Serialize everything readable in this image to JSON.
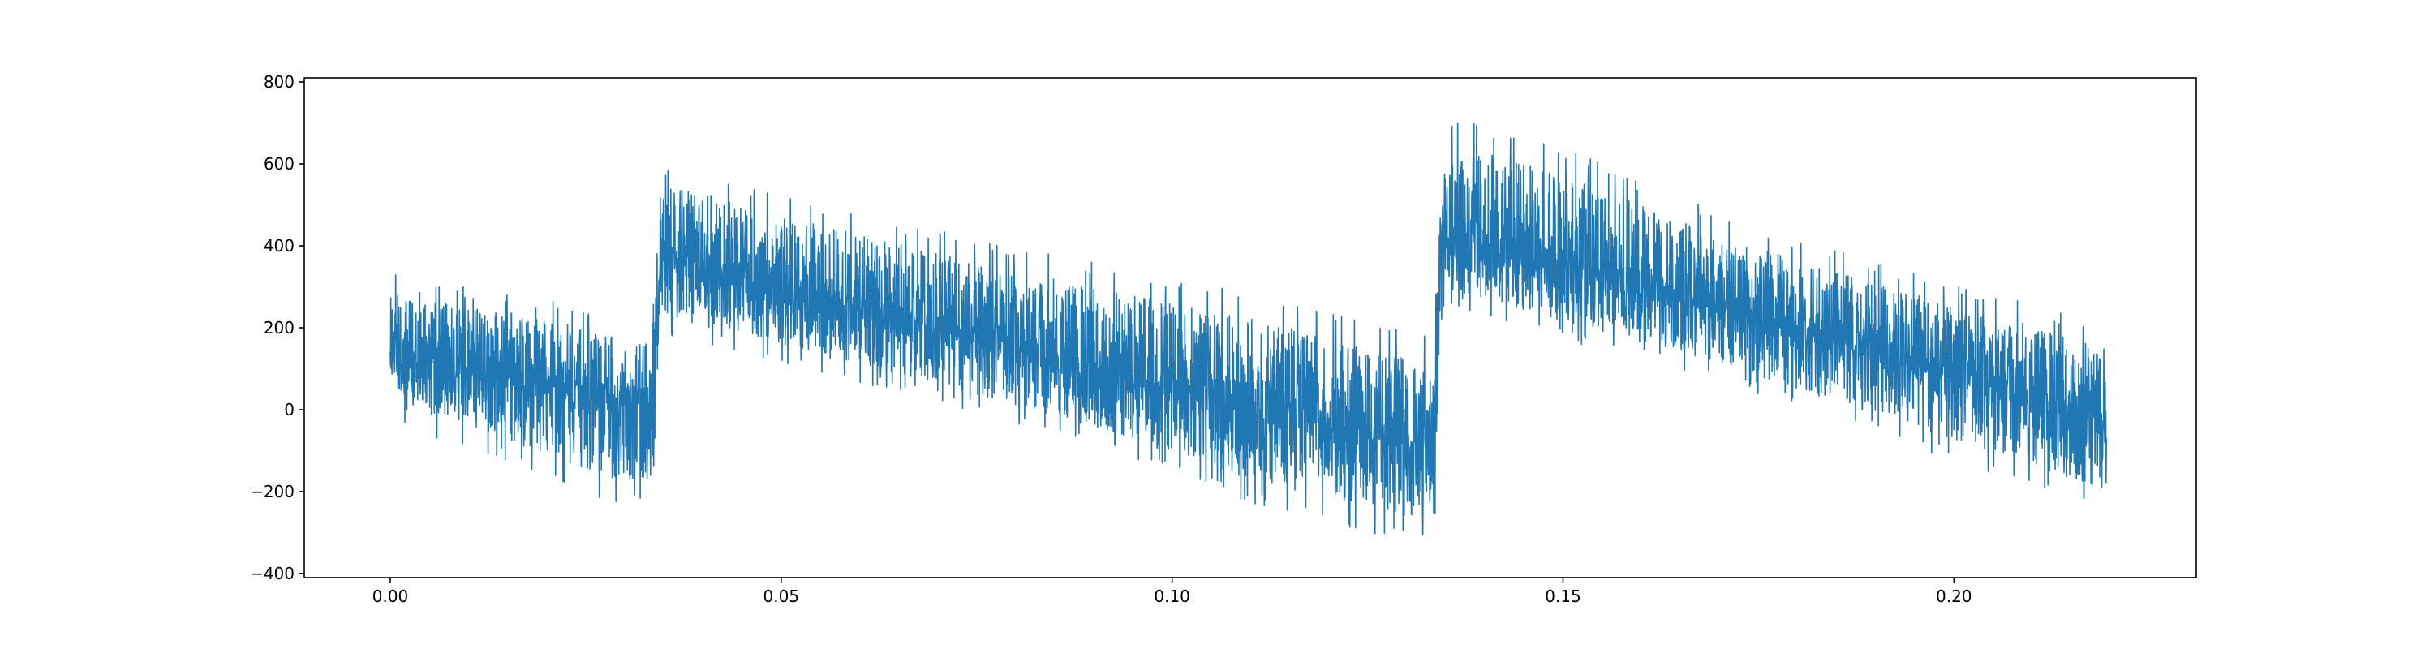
{
  "chart_data": {
    "type": "line",
    "title": "",
    "xlabel": "",
    "ylabel": "",
    "xlim": [
      -0.011,
      0.231
    ],
    "ylim": [
      -410,
      810
    ],
    "x_ticks": [
      0.0,
      0.05,
      0.1,
      0.15,
      0.2
    ],
    "x_tick_labels": [
      "0.00",
      "0.05",
      "0.10",
      "0.15",
      "0.20"
    ],
    "y_ticks": [
      -400,
      -200,
      0,
      200,
      400,
      600,
      800
    ],
    "y_tick_labels": [
      "−400",
      "−200",
      "0",
      "200",
      "400",
      "600",
      "800"
    ],
    "grid": false,
    "x_range": [
      0.0,
      0.2195
    ],
    "series": [
      {
        "color": "#1f77b4",
        "envelope": {
          "x": [
            0.0,
            0.002,
            0.01,
            0.02,
            0.03,
            0.0335,
            0.0345,
            0.036,
            0.05,
            0.07,
            0.09,
            0.11,
            0.125,
            0.132,
            0.1335,
            0.1345,
            0.136,
            0.15,
            0.17,
            0.19,
            0.21,
            0.2195
          ],
          "upper": [
            340,
            320,
            300,
            270,
            220,
            210,
            560,
            610,
            530,
            440,
            360,
            290,
            210,
            190,
            200,
            620,
            720,
            640,
            480,
            360,
            260,
            200
          ],
          "lower": [
            60,
            -50,
            -90,
            -170,
            -240,
            -230,
            180,
            180,
            110,
            20,
            -90,
            -230,
            -300,
            -330,
            -340,
            220,
            250,
            170,
            70,
            -60,
            -190,
            -260
          ],
          "center": [
            150,
            140,
            110,
            70,
            20,
            0,
            380,
            370,
            290,
            200,
            110,
            20,
            -60,
            -100,
            -110,
            410,
            420,
            360,
            250,
            140,
            40,
            -10
          ]
        }
      }
    ]
  }
}
